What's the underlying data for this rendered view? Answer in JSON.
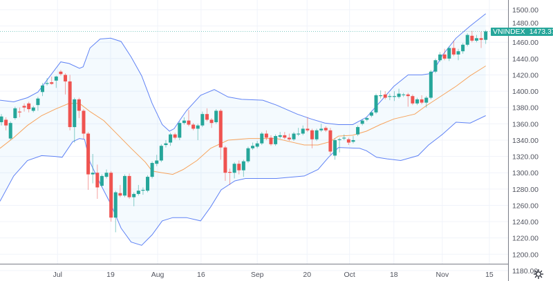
{
  "chart_data": {
    "type": "candlestick",
    "symbol": "VNINDEX",
    "last_value": "1473.37",
    "ylim": [
      1180,
      1500
    ],
    "y_ticks": [
      "1500.00",
      "1480.00",
      "1460.00",
      "1440.00",
      "1420.00",
      "1400.00",
      "1380.00",
      "1360.00",
      "1340.00",
      "1320.00",
      "1300.00",
      "1280.00",
      "1260.00",
      "1240.00",
      "1220.00",
      "1200.00",
      "1180.00"
    ],
    "x_ticks": [
      {
        "label": "Jul",
        "bar": 12.3
      },
      {
        "label": "19",
        "bar": 23.9
      },
      {
        "label": "Aug",
        "bar": 34.2
      },
      {
        "label": "16",
        "bar": 43.7
      },
      {
        "label": "Sep",
        "bar": 56
      },
      {
        "label": "20",
        "bar": 66.9
      },
      {
        "label": "Oct",
        "bar": 76.2
      },
      {
        "label": "18",
        "bar": 85.9
      },
      {
        "label": "Nov",
        "bar": 96.5
      },
      {
        "label": "15",
        "bar": 106.8
      }
    ],
    "ohlc": [
      [
        1362,
        1372,
        1358,
        1369
      ],
      [
        1365,
        1368,
        1352,
        1358
      ],
      [
        1342,
        1363,
        1340,
        1361
      ],
      [
        1367,
        1381,
        1365,
        1379
      ],
      [
        1375,
        1380,
        1368,
        1374
      ],
      [
        1382,
        1385,
        1375,
        1380
      ],
      [
        1385,
        1387,
        1374,
        1378
      ],
      [
        1376,
        1382,
        1374,
        1380
      ],
      [
        1383,
        1393,
        1376,
        1391
      ],
      [
        1399,
        1410,
        1394,
        1407
      ],
      [
        1409,
        1416,
        1407,
        1410
      ],
      [
        1411,
        1418,
        1408,
        1409
      ],
      [
        1413,
        1419,
        1404,
        1418
      ],
      [
        1424,
        1426,
        1419,
        1421
      ],
      [
        1420,
        1422,
        1396,
        1412
      ],
      [
        1412,
        1420,
        1352,
        1356
      ],
      [
        1356,
        1392,
        1337,
        1390
      ],
      [
        1390,
        1392,
        1367,
        1376
      ],
      [
        1376,
        1378,
        1341,
        1348
      ],
      [
        1348,
        1350,
        1279,
        1298
      ],
      [
        1298,
        1323,
        1287,
        1300
      ],
      [
        1300,
        1310,
        1268,
        1282
      ],
      [
        1284,
        1298,
        1282,
        1296
      ],
      [
        1295,
        1304,
        1293,
        1300
      ],
      [
        1300,
        1302,
        1240,
        1245
      ],
      [
        1245,
        1278,
        1227,
        1276
      ],
      [
        1275,
        1285,
        1270,
        1272
      ],
      [
        1272,
        1298,
        1270,
        1296
      ],
      [
        1296,
        1299,
        1268,
        1270
      ],
      [
        1270,
        1276,
        1259,
        1274
      ],
      [
        1274,
        1285,
        1272,
        1278
      ],
      [
        1278,
        1282,
        1273,
        1279
      ],
      [
        1278,
        1297,
        1276,
        1295
      ],
      [
        1295,
        1314,
        1293,
        1312
      ],
      [
        1311,
        1322,
        1308,
        1315
      ],
      [
        1315,
        1335,
        1313,
        1333
      ],
      [
        1334,
        1340,
        1331,
        1336
      ],
      [
        1337,
        1349,
        1333,
        1347
      ],
      [
        1347,
        1349,
        1341,
        1343
      ],
      [
        1343,
        1363,
        1340,
        1361
      ],
      [
        1361,
        1368,
        1359,
        1364
      ],
      [
        1364,
        1377,
        1357,
        1359
      ],
      [
        1359,
        1361,
        1352,
        1354
      ],
      [
        1354,
        1360,
        1340,
        1358
      ],
      [
        1358,
        1375,
        1356,
        1372
      ],
      [
        1372,
        1379,
        1363,
        1365
      ],
      [
        1365,
        1367,
        1355,
        1361
      ],
      [
        1362,
        1378,
        1360,
        1376
      ],
      [
        1376,
        1378,
        1316,
        1331
      ],
      [
        1331,
        1333,
        1290,
        1300
      ],
      [
        1301,
        1305,
        1285,
        1300
      ],
      [
        1300,
        1313,
        1293,
        1311
      ],
      [
        1311,
        1315,
        1298,
        1303
      ],
      [
        1303,
        1316,
        1295,
        1314
      ],
      [
        1314,
        1332,
        1312,
        1330
      ],
      [
        1330,
        1337,
        1328,
        1333
      ],
      [
        1332,
        1339,
        1330,
        1336
      ],
      [
        1336,
        1350,
        1334,
        1348
      ],
      [
        1348,
        1352,
        1340,
        1343
      ],
      [
        1343,
        1346,
        1333,
        1335
      ],
      [
        1335,
        1347,
        1333,
        1345
      ],
      [
        1344,
        1350,
        1342,
        1346
      ],
      [
        1346,
        1350,
        1341,
        1343
      ],
      [
        1343,
        1348,
        1339,
        1341
      ],
      [
        1341,
        1350,
        1339,
        1348
      ],
      [
        1347,
        1355,
        1345,
        1348
      ],
      [
        1348,
        1358,
        1346,
        1354
      ],
      [
        1354,
        1368,
        1350,
        1352
      ],
      [
        1352,
        1354,
        1330,
        1341
      ],
      [
        1341,
        1354,
        1339,
        1352
      ],
      [
        1352,
        1360,
        1350,
        1354
      ],
      [
        1355,
        1357,
        1350,
        1352
      ],
      [
        1352,
        1355,
        1322,
        1326
      ],
      [
        1321,
        1342,
        1316,
        1340
      ],
      [
        1340,
        1343,
        1325,
        1341
      ],
      [
        1342,
        1347,
        1340,
        1343
      ],
      [
        1341,
        1343,
        1334,
        1337
      ],
      [
        1338,
        1345,
        1336,
        1340
      ],
      [
        1347,
        1358,
        1345,
        1356
      ],
      [
        1360,
        1366,
        1358,
        1364
      ],
      [
        1365,
        1369,
        1363,
        1367
      ],
      [
        1370,
        1376,
        1368,
        1374
      ],
      [
        1374,
        1397,
        1372,
        1395
      ],
      [
        1394,
        1401,
        1391,
        1395
      ],
      [
        1396,
        1400,
        1390,
        1392
      ],
      [
        1393,
        1397,
        1389,
        1394
      ],
      [
        1393,
        1400,
        1388,
        1394
      ],
      [
        1393,
        1403,
        1391,
        1397
      ],
      [
        1396,
        1398,
        1393,
        1396
      ],
      [
        1396,
        1398,
        1381,
        1394
      ],
      [
        1394,
        1396,
        1383,
        1385
      ],
      [
        1385,
        1392,
        1383,
        1390
      ],
      [
        1390,
        1395,
        1384,
        1386
      ],
      [
        1386,
        1394,
        1380,
        1392
      ],
      [
        1392,
        1426,
        1390,
        1424
      ],
      [
        1424,
        1440,
        1422,
        1438
      ],
      [
        1438,
        1448,
        1436,
        1445
      ],
      [
        1445,
        1452,
        1438,
        1440
      ],
      [
        1440,
        1455,
        1437,
        1453
      ],
      [
        1453,
        1462,
        1443,
        1445
      ],
      [
        1445,
        1452,
        1438,
        1449
      ],
      [
        1449,
        1459,
        1446,
        1457
      ],
      [
        1457,
        1471,
        1455,
        1469
      ],
      [
        1468,
        1474,
        1460,
        1462
      ],
      [
        1462,
        1469,
        1460,
        1465
      ],
      [
        1465,
        1473,
        1453,
        1463
      ],
      [
        1463,
        1475,
        1458,
        1473.37
      ]
    ],
    "bollinger": {
      "upper": [
        [
          -0.3,
          1389
        ],
        [
          2.7,
          1387
        ],
        [
          5.7,
          1392
        ],
        [
          8,
          1399
        ],
        [
          10.3,
          1416
        ],
        [
          13,
          1436
        ],
        [
          14.8,
          1434
        ],
        [
          17.1,
          1428
        ],
        [
          17.9,
          1430
        ],
        [
          19.4,
          1453
        ],
        [
          21.6,
          1464
        ],
        [
          23.9,
          1465
        ],
        [
          26.2,
          1461
        ],
        [
          28.4,
          1442
        ],
        [
          30.7,
          1419
        ],
        [
          33,
          1385
        ],
        [
          35.2,
          1359
        ],
        [
          36.8,
          1351
        ],
        [
          37.8,
          1354
        ],
        [
          39,
          1364
        ],
        [
          40.5,
          1376
        ],
        [
          43.6,
          1395
        ],
        [
          46.6,
          1402
        ],
        [
          49.6,
          1393
        ],
        [
          52.6,
          1390
        ],
        [
          57.2,
          1389
        ],
        [
          60.2,
          1383
        ],
        [
          64.7,
          1372
        ],
        [
          67.8,
          1366
        ],
        [
          70.8,
          1361
        ],
        [
          73.8,
          1359
        ],
        [
          76.9,
          1359
        ],
        [
          79.9,
          1368
        ],
        [
          82.9,
          1387
        ],
        [
          85.9,
          1406
        ],
        [
          89,
          1420
        ],
        [
          92,
          1420
        ],
        [
          94.3,
          1422
        ],
        [
          96.5,
          1444
        ],
        [
          99.5,
          1465
        ],
        [
          102.6,
          1480
        ],
        [
          106,
          1495
        ]
      ],
      "middle": [
        [
          -0.3,
          1330
        ],
        [
          2.7,
          1343
        ],
        [
          5.7,
          1358
        ],
        [
          8.8,
          1370
        ],
        [
          11.8,
          1378
        ],
        [
          14.8,
          1385
        ],
        [
          17.1,
          1385
        ],
        [
          19.4,
          1375
        ],
        [
          22.4,
          1364
        ],
        [
          25.4,
          1347
        ],
        [
          28.4,
          1330
        ],
        [
          31.5,
          1313
        ],
        [
          33,
          1302
        ],
        [
          35.2,
          1300
        ],
        [
          37.5,
          1298
        ],
        [
          39.8,
          1304
        ],
        [
          42.8,
          1315
        ],
        [
          45.8,
          1330
        ],
        [
          49.6,
          1340
        ],
        [
          54.2,
          1342
        ],
        [
          60.2,
          1342
        ],
        [
          63.2,
          1338
        ],
        [
          66.3,
          1334
        ],
        [
          69.3,
          1334
        ],
        [
          71.9,
          1338
        ],
        [
          73.8,
          1345
        ],
        [
          76.9,
          1346
        ],
        [
          79.9,
          1351
        ],
        [
          82.9,
          1359
        ],
        [
          85.9,
          1366
        ],
        [
          90.5,
          1372
        ],
        [
          92.7,
          1381
        ],
        [
          96.5,
          1395
        ],
        [
          99.5,
          1406
        ],
        [
          102.6,
          1419
        ],
        [
          106,
          1431
        ]
      ],
      "lower": [
        [
          -0.3,
          1265
        ],
        [
          2.7,
          1296
        ],
        [
          5.7,
          1315
        ],
        [
          8.8,
          1321
        ],
        [
          11.8,
          1320
        ],
        [
          13.3,
          1319
        ],
        [
          15.6,
          1338
        ],
        [
          17.1,
          1342
        ],
        [
          18.2,
          1341
        ],
        [
          19.4,
          1313
        ],
        [
          21.6,
          1287
        ],
        [
          23.9,
          1262
        ],
        [
          26.2,
          1232
        ],
        [
          28.4,
          1215
        ],
        [
          30.7,
          1211
        ],
        [
          33,
          1224
        ],
        [
          35.2,
          1241
        ],
        [
          37.5,
          1245
        ],
        [
          40.5,
          1245
        ],
        [
          43.6,
          1241
        ],
        [
          45.8,
          1258
        ],
        [
          48.1,
          1279
        ],
        [
          51.1,
          1290
        ],
        [
          53.4,
          1293
        ],
        [
          60.2,
          1293
        ],
        [
          66.3,
          1296
        ],
        [
          69.3,
          1304
        ],
        [
          71.6,
          1319
        ],
        [
          73.8,
          1331
        ],
        [
          78.4,
          1330
        ],
        [
          79.9,
          1327
        ],
        [
          82.1,
          1319
        ],
        [
          84.4,
          1317
        ],
        [
          87.4,
          1315
        ],
        [
          91.2,
          1321
        ],
        [
          93.5,
          1334
        ],
        [
          96.5,
          1347
        ],
        [
          99.5,
          1362
        ],
        [
          102.6,
          1361
        ],
        [
          106,
          1370
        ]
      ]
    },
    "colors": {
      "up": "#26a69a",
      "down": "#ef5350",
      "band": "#5f82f5",
      "basis": "#f7a35c",
      "fill": "#2196f3"
    }
  }
}
